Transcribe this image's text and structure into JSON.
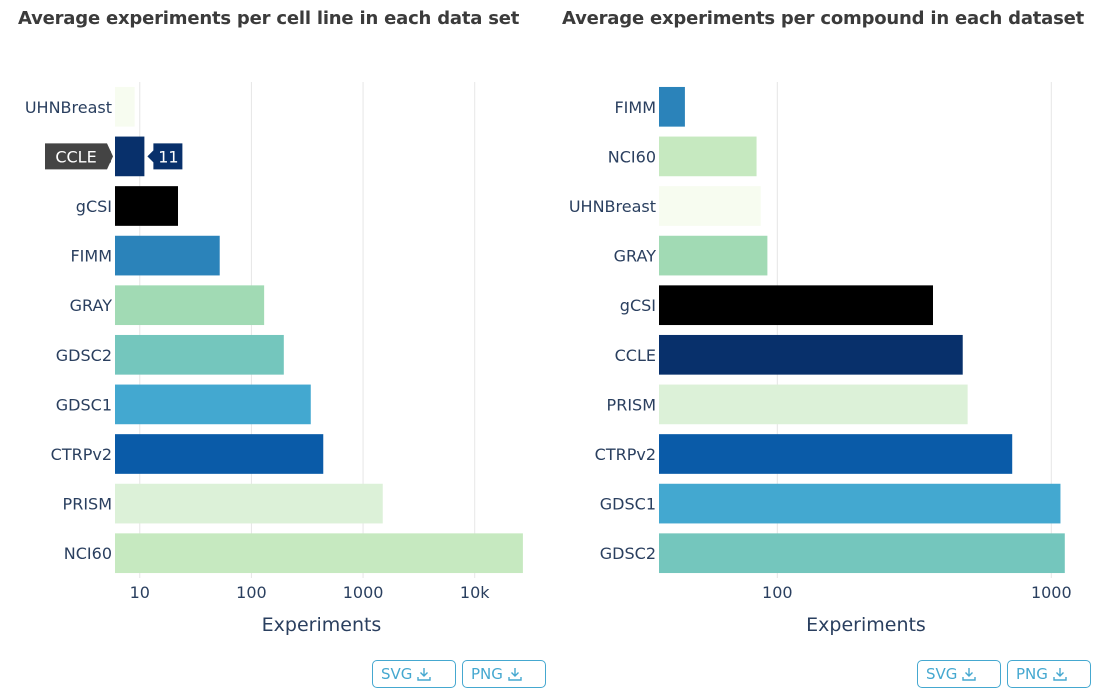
{
  "buttons": {
    "svg": "SVG",
    "png": "PNG"
  },
  "chart_data": [
    {
      "type": "bar",
      "orientation": "horizontal",
      "title": "Average experiments per cell line in each data set",
      "xlabel": "Experiments",
      "ylabel": "",
      "xscale": "log",
      "xlim": [
        6,
        30000
      ],
      "xticks": [
        10,
        100,
        1000,
        10000
      ],
      "xtick_labels": [
        "10",
        "100",
        "1000",
        "10k"
      ],
      "grid": true,
      "categories": [
        "UHNBreast",
        "CCLE",
        "gCSI",
        "FIMM",
        "GRAY",
        "GDSC2",
        "GDSC1",
        "CTRPv2",
        "PRISM",
        "NCI60"
      ],
      "values": [
        9,
        11,
        22,
        52,
        130,
        195,
        340,
        440,
        1500,
        27000
      ],
      "colors": [
        "#f7fcf0",
        "#08306b",
        "#000000",
        "#2b83ba",
        "#a1dab4",
        "#74c6bd",
        "#43a8d0",
        "#0a5ba8",
        "#dcf1d8",
        "#c6e9c0"
      ],
      "tooltip": {
        "category": "CCLE",
        "value": "11"
      }
    },
    {
      "type": "bar",
      "orientation": "horizontal",
      "title": "Average experiments per compound in each dataset",
      "xlabel": "Experiments",
      "ylabel": "",
      "xscale": "log",
      "xlim": [
        37,
        1200
      ],
      "xticks": [
        100,
        1000
      ],
      "xtick_labels": [
        "100",
        "1000"
      ],
      "grid": true,
      "categories": [
        "FIMM",
        "NCI60",
        "UHNBreast",
        "GRAY",
        "gCSI",
        "CCLE",
        "PRISM",
        "CTRPv2",
        "GDSC1",
        "GDSC2"
      ],
      "values": [
        46,
        84,
        87,
        92,
        370,
        475,
        495,
        720,
        1080,
        1120
      ],
      "colors": [
        "#2b83ba",
        "#c6e9c0",
        "#f7fcf0",
        "#a1dab4",
        "#000000",
        "#08306b",
        "#dcf1d8",
        "#0a5ba8",
        "#43a8d0",
        "#74c6bd"
      ]
    }
  ]
}
